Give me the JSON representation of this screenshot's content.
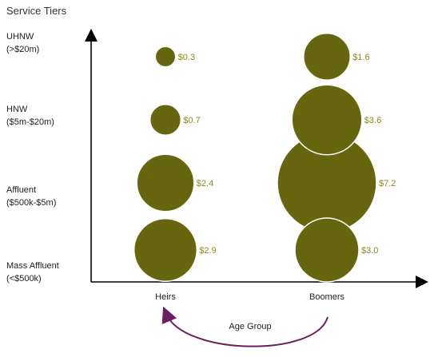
{
  "chart_data": {
    "type": "bubble",
    "title": "Service Tiers",
    "xlabel": "Age Group",
    "categories": [
      "Heirs",
      "Boomers"
    ],
    "tiers": [
      {
        "line1": "UHNW",
        "line2": "(>$20m)"
      },
      {
        "line1": "HNW",
        "line2": "($5m-$20m)"
      },
      {
        "line1": "Affluent",
        "line2": "($500k-$5m)"
      },
      {
        "line1": "Mass Affluent",
        "line2": "(<$500k)"
      }
    ],
    "points": [
      {
        "category": "Heirs",
        "tier": "UHNW",
        "value": 0.3,
        "label": "$0.3"
      },
      {
        "category": "Heirs",
        "tier": "HNW",
        "value": 0.7,
        "label": "$0.7"
      },
      {
        "category": "Heirs",
        "tier": "Affluent",
        "value": 2.4,
        "label": "$2.4"
      },
      {
        "category": "Heirs",
        "tier": "Mass Affluent",
        "value": 2.9,
        "label": "$2.9"
      },
      {
        "category": "Boomers",
        "tier": "UHNW",
        "value": 1.6,
        "label": "$1.6"
      },
      {
        "category": "Boomers",
        "tier": "HNW",
        "value": 3.6,
        "label": "$3.6"
      },
      {
        "category": "Boomers",
        "tier": "Affluent",
        "value": 7.2,
        "label": "$7.2"
      },
      {
        "category": "Boomers",
        "tier": "Mass Affluent",
        "value": 3.0,
        "label": "$3.0"
      }
    ],
    "colors": {
      "bubble": "#66660f",
      "value_label": "#8a8a1a",
      "arrow": "#6b1f5e"
    },
    "grid": false,
    "legend": "none"
  }
}
